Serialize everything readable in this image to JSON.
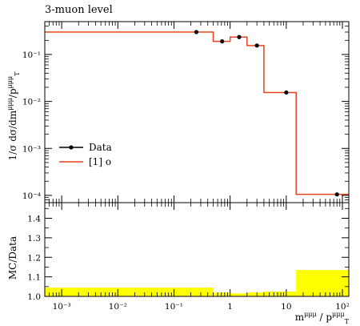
{
  "title": "3-muon level",
  "colors": {
    "data_marker": "#000000",
    "mc_line": "#e8411f",
    "ratio_band": "#ffff00",
    "frame": "#000000"
  },
  "chart_data": [
    {
      "type": "line",
      "panel": "main",
      "xscale": "log",
      "yscale": "log",
      "xlim": [
        0.0005,
        130
      ],
      "ylim": [
        7e-05,
        0.5
      ],
      "ylabel": "1/σ dσ/dm^{μμμ}/p_T^{μμμ}",
      "ytick_values": [
        0.0001,
        0.001,
        0.01,
        0.1
      ],
      "ytick_labels": [
        "10⁻⁴",
        "10⁻³",
        "10⁻²",
        "10⁻¹"
      ],
      "legend_position": "middle-left",
      "series": [
        {
          "name": "Data",
          "marker": "dot",
          "points": [
            {
              "x": 0.25,
              "y": 0.3
            },
            {
              "x": 0.72,
              "y": 0.19
            },
            {
              "x": 1.45,
              "y": 0.235
            },
            {
              "x": 3.0,
              "y": 0.155
            },
            {
              "x": 10.0,
              "y": 0.0155
            },
            {
              "x": 80.0,
              "y": 0.000105
            }
          ]
        },
        {
          "name": "[1] o",
          "style": "step",
          "bins": [
            {
              "x0": 0.0005,
              "x1": 0.5,
              "y": 0.3
            },
            {
              "x0": 0.5,
              "x1": 1.0,
              "y": 0.19
            },
            {
              "x0": 1.0,
              "x1": 2.0,
              "y": 0.235
            },
            {
              "x0": 2.0,
              "x1": 4.0,
              "y": 0.155
            },
            {
              "x0": 4.0,
              "x1": 15.0,
              "y": 0.0155
            },
            {
              "x0": 15.0,
              "x1": 130.0,
              "y": 0.000105
            }
          ]
        }
      ]
    },
    {
      "type": "area",
      "panel": "ratio",
      "xscale": "log",
      "xlim": [
        0.0005,
        130
      ],
      "ylim": [
        1.0,
        1.48
      ],
      "xlabel": "m^{μμμ}/p_T^{μμμ}",
      "ylabel": "MC/Data",
      "xtick_values": [
        0.001,
        0.01,
        0.1,
        1,
        10,
        100
      ],
      "xtick_labels": [
        "10⁻³",
        "10⁻²",
        "10⁻¹",
        "1",
        "10",
        "10²"
      ],
      "ytick_values": [
        1.0,
        1.1,
        1.2,
        1.3,
        1.4
      ],
      "ytick_labels": [
        "1.0",
        "1.1",
        "1.2",
        "1.3",
        "1.4"
      ],
      "series": [
        {
          "name": "uncertainty band",
          "bins": [
            {
              "x0": 0.0005,
              "x1": 0.5,
              "lo": 1.0,
              "hi": 1.045
            },
            {
              "x0": 0.5,
              "x1": 1.0,
              "lo": 1.0,
              "hi": 1.02
            },
            {
              "x0": 1.0,
              "x1": 2.0,
              "lo": 1.0,
              "hi": 1.015
            },
            {
              "x0": 2.0,
              "x1": 4.0,
              "lo": 1.0,
              "hi": 1.02
            },
            {
              "x0": 4.0,
              "x1": 15.0,
              "lo": 1.0,
              "hi": 1.025
            },
            {
              "x0": 15.0,
              "x1": 130.0,
              "lo": 1.0,
              "hi": 1.135
            }
          ]
        }
      ]
    }
  ]
}
